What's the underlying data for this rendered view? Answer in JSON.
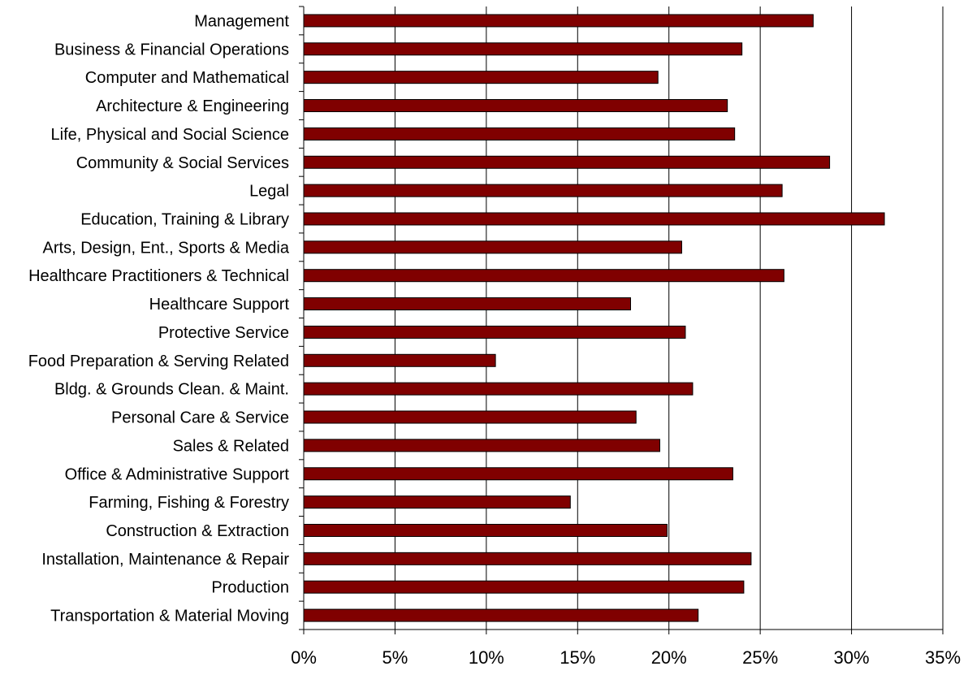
{
  "chart_data": {
    "type": "bar",
    "orientation": "horizontal",
    "categories": [
      "Management",
      "Business & Financial Operations",
      "Computer and Mathematical",
      "Architecture & Engineering",
      "Life, Physical and Social Science",
      "Community & Social Services",
      "Legal",
      "Education, Training & Library",
      "Arts, Design, Ent., Sports & Media",
      "Healthcare Practitioners & Technical",
      "Healthcare Support",
      "Protective Service",
      "Food Preparation & Serving Related",
      "Bldg. & Grounds Clean. & Maint.",
      "Personal Care & Service",
      "Sales & Related",
      "Office & Administrative Support",
      "Farming, Fishing & Forestry",
      "Construction & Extraction",
      "Installation, Maintenance & Repair",
      "Production",
      "Transportation & Material Moving"
    ],
    "values": [
      27.9,
      24.0,
      19.4,
      23.2,
      23.6,
      28.8,
      26.2,
      31.8,
      20.7,
      26.3,
      17.9,
      20.9,
      10.5,
      21.3,
      18.2,
      19.5,
      23.5,
      14.6,
      19.9,
      24.5,
      24.1,
      21.6
    ],
    "x_ticks": [
      "0%",
      "5%",
      "10%",
      "15%",
      "20%",
      "25%",
      "30%",
      "35%"
    ],
    "xlim": [
      0,
      35
    ],
    "grid": "vertical major gridlines",
    "bar_color": "#800000",
    "title": "",
    "xlabel": "",
    "ylabel": ""
  }
}
